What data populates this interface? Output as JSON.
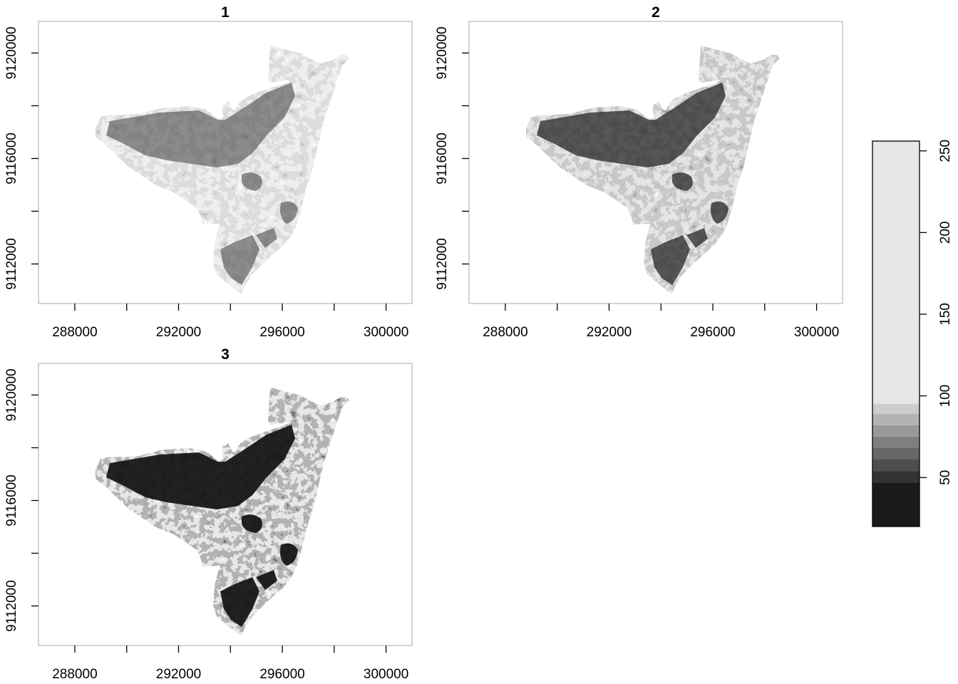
{
  "figure": {
    "panels": [
      {
        "title": "1",
        "tone": "light"
      },
      {
        "title": "2",
        "tone": "medium"
      },
      {
        "title": "3",
        "tone": "dark"
      }
    ],
    "x_ticks": [
      "288000",
      "292000",
      "296000",
      "300000"
    ],
    "y_ticks": [
      "9112000",
      "9116000",
      "9120000"
    ],
    "legend": {
      "ticks": [
        "50",
        "100",
        "150",
        "200",
        "250"
      ]
    }
  },
  "chart_data": {
    "type": "heatmap",
    "title": "",
    "panels": [
      "1",
      "2",
      "3"
    ],
    "x_ticks": [
      288000,
      292000,
      296000,
      300000
    ],
    "y_ticks": [
      9112000,
      9116000,
      9120000
    ],
    "xlim": [
      286600,
      301000
    ],
    "ylim": [
      9110500,
      9121200
    ],
    "colorbar": {
      "ticks": [
        50,
        100,
        150,
        200,
        250
      ],
      "range": [
        20,
        256
      ],
      "colormap": "grayscale",
      "breaks": [
        {
          "from": 20,
          "to": 47,
          "color": "#1a1a1a"
        },
        {
          "from": 47,
          "to": 54,
          "color": "#333333"
        },
        {
          "from": 54,
          "to": 61,
          "color": "#4d4d4d"
        },
        {
          "from": 61,
          "to": 68,
          "color": "#666666"
        },
        {
          "from": 68,
          "to": 75,
          "color": "#7f7f7f"
        },
        {
          "from": 75,
          "to": 82,
          "color": "#999999"
        },
        {
          "from": 82,
          "to": 89,
          "color": "#b3b3b3"
        },
        {
          "from": 89,
          "to": 95,
          "color": "#cccccc"
        },
        {
          "from": 95,
          "to": 256,
          "color": "#e6e6e6"
        }
      ]
    }
  }
}
